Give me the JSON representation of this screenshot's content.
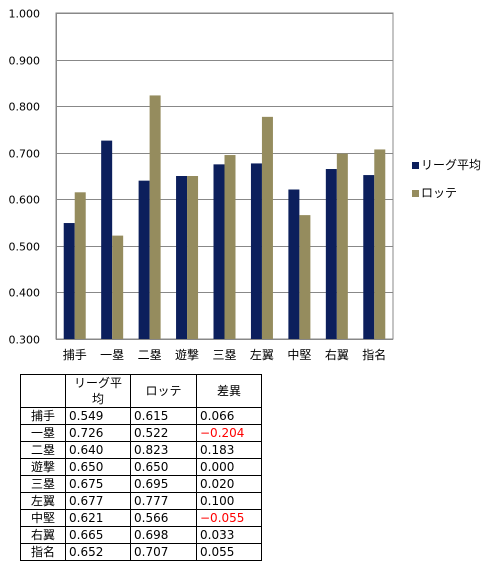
{
  "chart_data": {
    "type": "bar",
    "categories": [
      "捕手",
      "一塁",
      "二塁",
      "遊撃",
      "三塁",
      "左翼",
      "中堅",
      "右翼",
      "指名"
    ],
    "series": [
      {
        "name": "リーグ平均",
        "color": "#0c1f5c",
        "values": [
          0.549,
          0.726,
          0.64,
          0.65,
          0.675,
          0.677,
          0.621,
          0.665,
          0.652
        ]
      },
      {
        "name": "ロッテ",
        "color": "#958c5e",
        "values": [
          0.615,
          0.522,
          0.823,
          0.65,
          0.695,
          0.777,
          0.566,
          0.698,
          0.707
        ]
      }
    ],
    "ylim": [
      0.3,
      1.0
    ],
    "yticks": [
      "0.300",
      "0.400",
      "0.500",
      "0.600",
      "0.700",
      "0.800",
      "0.900",
      "1.000"
    ],
    "grid": true,
    "legend_position": "right"
  },
  "table": {
    "headers": [
      "",
      "リーグ平均",
      "ロッテ",
      "差異"
    ],
    "rows": [
      [
        "捕手",
        "0.549",
        "0.615",
        "0.066"
      ],
      [
        "一塁",
        "0.726",
        "0.522",
        "−0.204"
      ],
      [
        "二塁",
        "0.640",
        "0.823",
        "0.183"
      ],
      [
        "遊撃",
        "0.650",
        "0.650",
        "0.000"
      ],
      [
        "三塁",
        "0.675",
        "0.695",
        "0.020"
      ],
      [
        "左翼",
        "0.677",
        "0.777",
        "0.100"
      ],
      [
        "中堅",
        "0.621",
        "0.566",
        "−0.055"
      ],
      [
        "右翼",
        "0.665",
        "0.698",
        "0.033"
      ],
      [
        "指名",
        "0.652",
        "0.707",
        "0.055"
      ]
    ],
    "negative_color": "#ff0000"
  }
}
